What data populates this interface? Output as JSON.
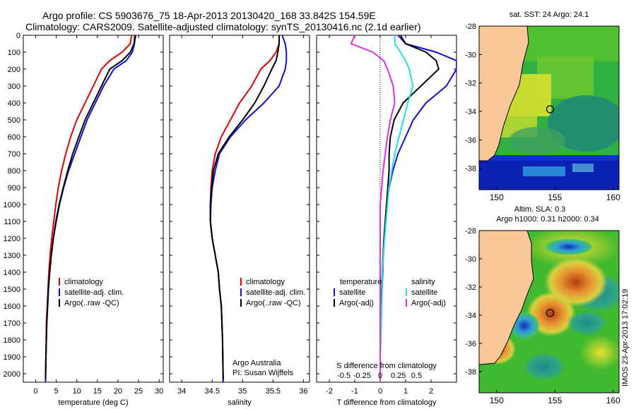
{
  "header": {
    "title_line1": "Argo profile: CS 5903676_75 18-Apr-2013 20130420_168 33.842S 154.59E",
    "title_line2": "Climatology: CARS2009. Satellite-adjusted climatology: synTS_20130416.nc (2.1d earlier)"
  },
  "footer": {
    "imos_stamp": "IMOS 23-Apr-2013 17:02:19",
    "argo_credit": "Argo Australia",
    "pi_credit": "PI: Susan Wijffels"
  },
  "colors": {
    "climatology": "#e00000",
    "satellite": "#1010d0",
    "argo": "#000000",
    "salinity_satellite": "#20e0e0",
    "salinity_argo": "#e030e0",
    "land": "#f8c898"
  },
  "chart_data": [
    {
      "type": "line",
      "name": "temperature",
      "xlabel": "temperature (deg C)",
      "ylabel": "",
      "xlim": [
        -3,
        31
      ],
      "ylim": [
        0,
        2050
      ],
      "y_reversed": true,
      "xticks": [
        0,
        5,
        10,
        15,
        20,
        25,
        30
      ],
      "xtick_labels": [
        "0",
        "5",
        "10",
        "15",
        "20",
        "25",
        "30"
      ],
      "yticks": [
        0,
        100,
        200,
        300,
        400,
        500,
        600,
        700,
        800,
        900,
        1000,
        1100,
        1200,
        1300,
        1400,
        1500,
        1600,
        1700,
        1800,
        1900,
        2000
      ],
      "ytick_labels": [
        "0",
        "100",
        "200",
        "300",
        "400",
        "500",
        "600",
        "700",
        "800",
        "900",
        "1000",
        "1100",
        "1200",
        "1300",
        "1400",
        "1500",
        "1600",
        "1700",
        "1800",
        "1900",
        "2000"
      ],
      "legend": [
        "climatology",
        "satellite-adj. clim.",
        "Argo(..raw -QC)"
      ],
      "series": [
        {
          "name": "climatology",
          "color": "#e00000",
          "x": [
            23.3,
            23.0,
            21.0,
            18.0,
            16.0,
            14.0,
            12.0,
            10.0,
            8.5,
            7.3,
            6.3,
            5.5,
            4.9,
            4.4,
            3.9,
            3.5,
            3.2,
            3.0,
            2.8,
            2.6,
            2.5,
            2.4
          ],
          "y": [
            0,
            50,
            100,
            150,
            200,
            300,
            400,
            500,
            600,
            700,
            800,
            900,
            1000,
            1100,
            1200,
            1300,
            1400,
            1500,
            1600,
            1700,
            1900,
            2050
          ]
        },
        {
          "name": "satellite-adj. clim.",
          "color": "#1010d0",
          "x": [
            24.3,
            24.0,
            23.5,
            22.0,
            19.0,
            16.5,
            14.5,
            12.5,
            11.0,
            9.5,
            8.0,
            6.8,
            5.8,
            5.0,
            4.3,
            3.8,
            3.4,
            3.1,
            2.9,
            2.7,
            2.5,
            2.4
          ],
          "y": [
            0,
            50,
            100,
            150,
            200,
            300,
            400,
            500,
            600,
            700,
            800,
            900,
            1000,
            1100,
            1200,
            1300,
            1400,
            1500,
            1600,
            1700,
            1900,
            2050
          ]
        },
        {
          "name": "Argo(..raw -QC)",
          "color": "#000000",
          "x": [
            24.1,
            23.9,
            23.0,
            21.0,
            18.0,
            16.0,
            14.0,
            12.0,
            10.5,
            9.0,
            7.8,
            6.7,
            5.7,
            4.9,
            4.3,
            3.8,
            3.4,
            3.1,
            2.9,
            2.7,
            2.5,
            2.4
          ],
          "y": [
            0,
            50,
            100,
            150,
            200,
            300,
            400,
            500,
            600,
            700,
            800,
            900,
            1000,
            1100,
            1200,
            1300,
            1400,
            1500,
            1600,
            1700,
            1900,
            2030
          ]
        }
      ]
    },
    {
      "type": "line",
      "name": "salinity",
      "xlabel": "salinity",
      "ylabel": "",
      "xlim": [
        33.8,
        36.1
      ],
      "ylim": [
        0,
        2050
      ],
      "y_reversed": true,
      "xticks": [
        34,
        34.5,
        35,
        35.5,
        36
      ],
      "xtick_labels": [
        "34",
        "34.5",
        "35",
        "35.5",
        "36"
      ],
      "legend": [
        "climatology",
        "satellite-adj. clim.",
        "Argo(..raw -QC)"
      ],
      "series": [
        {
          "name": "climatology",
          "color": "#e00000",
          "x": [
            35.6,
            35.6,
            35.55,
            35.45,
            35.3,
            35.15,
            34.95,
            34.8,
            34.65,
            34.55,
            34.5,
            34.48,
            34.47,
            34.47,
            34.5,
            34.55,
            34.6,
            34.62,
            34.65,
            34.67,
            34.68
          ],
          "y": [
            0,
            50,
            100,
            150,
            200,
            300,
            400,
            500,
            600,
            700,
            800,
            900,
            1000,
            1100,
            1200,
            1300,
            1400,
            1500,
            1600,
            1800,
            2050
          ]
        },
        {
          "name": "satellite-adj. clim.",
          "color": "#1010d0",
          "x": [
            35.65,
            35.7,
            35.72,
            35.72,
            35.7,
            35.6,
            35.35,
            35.05,
            34.8,
            34.62,
            34.55,
            34.5,
            34.48,
            34.47,
            34.5,
            34.55,
            34.6,
            34.62,
            34.65,
            34.67,
            34.68
          ],
          "y": [
            0,
            50,
            100,
            150,
            200,
            300,
            400,
            500,
            600,
            700,
            800,
            900,
            1000,
            1100,
            1200,
            1300,
            1400,
            1500,
            1600,
            1800,
            2050
          ]
        },
        {
          "name": "Argo(..raw -QC)",
          "color": "#000000",
          "x": [
            35.6,
            35.6,
            35.58,
            35.55,
            35.48,
            35.35,
            35.2,
            35.0,
            34.78,
            34.6,
            34.52,
            34.49,
            34.47,
            34.47,
            34.5,
            34.55,
            34.6,
            34.62,
            34.65,
            34.67,
            34.68
          ],
          "y": [
            0,
            50,
            100,
            150,
            200,
            300,
            400,
            500,
            600,
            700,
            800,
            900,
            1000,
            1100,
            1200,
            1300,
            1400,
            1500,
            1600,
            1800,
            2030
          ]
        }
      ]
    },
    {
      "type": "line",
      "name": "difference",
      "xlabel": "T difference from climatology",
      "xlabel_top": "S difference from climatology",
      "xlim": [
        -2.5,
        3.0
      ],
      "ylim": [
        0,
        2050
      ],
      "y_reversed": true,
      "xticks": [
        -2,
        -1,
        0,
        1,
        2
      ],
      "xtick_labels": [
        "-2",
        "-1",
        "0",
        "1",
        "2"
      ],
      "sticks": [
        -0.5,
        -0.25,
        0,
        0.25,
        0.5
      ],
      "stick_labels": [
        "-0.5",
        "-0.25",
        "0",
        "0.25",
        "0.5"
      ],
      "legend_temperature": {
        "heading": "temperature",
        "items": [
          "satellite",
          "Argo(-adj)"
        ]
      },
      "legend_salinity": {
        "heading": "salinity",
        "items": [
          "satellite",
          "Argo(-adj)"
        ]
      },
      "series": [
        {
          "name": "temperature satellite",
          "color": "#1010d0",
          "x": [
            0.7,
            1.0,
            2.2,
            3.0,
            3.0,
            2.6,
            1.8,
            1.3,
            1.0,
            0.7,
            0.5,
            0.35,
            0.25,
            0.15,
            0.1,
            0.05,
            0.02,
            0.0,
            0.0,
            0.0
          ],
          "y": [
            0,
            50,
            100,
            150,
            200,
            300,
            400,
            500,
            600,
            700,
            800,
            900,
            1000,
            1200,
            1400,
            1600,
            1700,
            1800,
            1900,
            2050
          ]
        },
        {
          "name": "temperature argo",
          "color": "#000000",
          "x": [
            0.8,
            1.0,
            1.8,
            2.2,
            2.3,
            1.6,
            0.9,
            0.55,
            0.4,
            0.35,
            0.35,
            0.3,
            0.25,
            0.15,
            0.08,
            0.04,
            0.02,
            0.0,
            0.0,
            0.0
          ],
          "y": [
            0,
            50,
            100,
            150,
            200,
            300,
            400,
            500,
            600,
            700,
            800,
            900,
            1000,
            1200,
            1400,
            1600,
            1700,
            1800,
            1900,
            2050
          ]
        },
        {
          "name": "salinity satellite",
          "color": "#20e0e0",
          "x": [
            0.2,
            0.2,
            0.28,
            0.35,
            0.4,
            0.45,
            0.38,
            0.32,
            0.26,
            0.2,
            0.16,
            0.12,
            0.1,
            0.06,
            0.03,
            0.02,
            0.01,
            0.0,
            0.0
          ],
          "y": [
            0,
            50,
            100,
            150,
            200,
            300,
            400,
            500,
            600,
            700,
            800,
            900,
            1000,
            1200,
            1400,
            1600,
            1800,
            1900,
            2050
          ]
        },
        {
          "name": "salinity argo",
          "color": "#e030e0",
          "x": [
            -0.35,
            -0.4,
            -0.1,
            0.05,
            0.1,
            0.18,
            0.2,
            0.14,
            0.1,
            0.07,
            0.04,
            0.02,
            0.0,
            0.0,
            0.0,
            0.0,
            0.0
          ],
          "y": [
            0,
            50,
            100,
            150,
            200,
            300,
            400,
            500,
            600,
            700,
            800,
            900,
            1000,
            1200,
            1400,
            1800,
            2050
          ]
        }
      ]
    },
    {
      "type": "heatmap",
      "name": "sst-map",
      "title": "sat. SST: 24 Argo: 24.1",
      "xlim": [
        148.5,
        160.5
      ],
      "ylim": [
        -39.5,
        -28
      ],
      "xticks": [
        150,
        155,
        160
      ],
      "xtick_labels": [
        "150",
        "155",
        "160"
      ],
      "yticks": [
        -28,
        -30,
        -32,
        -34,
        -36,
        -38
      ],
      "ytick_labels": [
        "-28",
        "-30",
        "-32",
        "-34",
        "-36",
        "-38"
      ],
      "marker": {
        "lon": 154.59,
        "lat": -33.842
      }
    },
    {
      "type": "heatmap",
      "name": "sla-map",
      "title": "Altim. SLA: 0.3",
      "subtitle": "Argo h1000: 0.31 h2000: 0.34",
      "xlim": [
        148.5,
        160.5
      ],
      "ylim": [
        -39.5,
        -28
      ],
      "xticks": [
        150,
        155,
        160
      ],
      "xtick_labels": [
        "150",
        "155",
        "160"
      ],
      "yticks": [
        -28,
        -30,
        -32,
        -34,
        -36,
        -38
      ],
      "ytick_labels": [
        "-28",
        "-30",
        "-32",
        "-34",
        "-36",
        "-38"
      ],
      "marker": {
        "lon": 154.59,
        "lat": -33.842
      }
    }
  ]
}
